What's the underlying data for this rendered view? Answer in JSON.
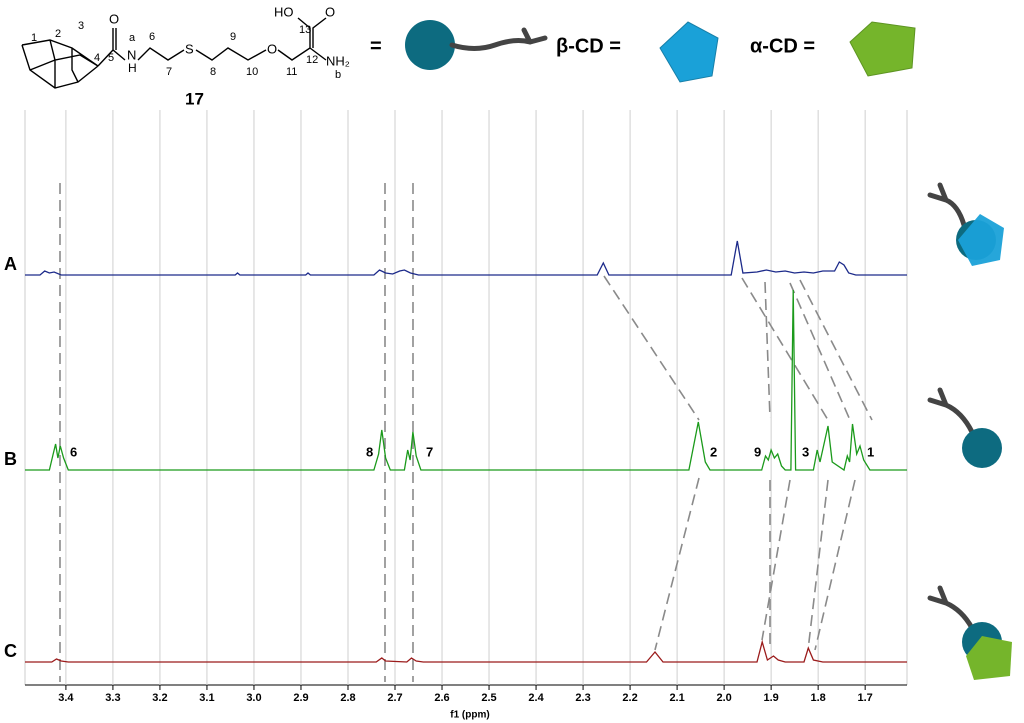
{
  "structure": {
    "atom_labels": [
      "1",
      "2",
      "3",
      "4",
      "5",
      "O",
      "a",
      "N",
      "H",
      "6",
      "7",
      "S",
      "8",
      "9",
      "10",
      "O",
      "11",
      "12",
      "13",
      "HO",
      "O",
      "NH₂",
      "b"
    ],
    "compound_number": "17"
  },
  "legend": {
    "equals": "=",
    "beta_cd": "β-CD =",
    "alpha_cd": "α-CD ="
  },
  "chart_data": {
    "type": "line",
    "xlabel": "f1 (ppm)",
    "xlim": [
      3.487,
      1.611
    ],
    "ylim": [
      0,
      200
    ],
    "grid": true,
    "xticks": [
      3.4,
      3.3,
      3.2,
      3.1,
      {
        "value": 3,
        "label": "3.0"
      },
      2.9,
      2.8,
      2.7,
      2.6,
      2.5,
      2.4,
      2.3,
      2.2,
      2.1,
      {
        "value": 2,
        "label": "2.0"
      },
      1.9,
      1.8,
      1.7
    ],
    "annotations": [
      "6",
      "8",
      "7",
      "2",
      "9",
      "3",
      "1"
    ],
    "series": [
      {
        "name": "A",
        "color": "#1c2a8a",
        "x": [
          3.487,
          3.455,
          3.445,
          3.435,
          3.425,
          3.41,
          3.04,
          3.035,
          3.03,
          2.89,
          2.885,
          2.88,
          2.745,
          2.733,
          2.72,
          2.705,
          2.69,
          2.68,
          2.667,
          2.65,
          2.27,
          2.257,
          2.245,
          1.985,
          1.972,
          1.96,
          1.93,
          1.91,
          1.89,
          1.87,
          1.85,
          1.83,
          1.81,
          1.79,
          1.765,
          1.755,
          1.745,
          1.735,
          1.72,
          1.611
        ],
        "values": [
          0,
          0,
          4,
          2,
          3,
          0,
          0,
          2,
          0,
          0,
          2,
          0,
          0,
          5,
          2,
          1,
          4,
          5,
          2,
          0,
          0,
          12,
          0,
          0,
          34,
          2,
          3,
          5,
          3,
          4,
          2,
          3,
          2,
          4,
          4,
          13,
          10,
          2,
          0,
          0
        ]
      },
      {
        "name": "B",
        "color": "#1b9a1b",
        "x": [
          3.487,
          3.435,
          3.428,
          3.422,
          3.417,
          3.412,
          3.405,
          3.395,
          2.745,
          2.735,
          2.728,
          2.72,
          2.71,
          2.68,
          2.673,
          2.668,
          2.662,
          2.655,
          2.645,
          2.075,
          2.055,
          2.04,
          2.03,
          1.92,
          1.912,
          1.906,
          1.9,
          1.893,
          1.886,
          1.878,
          1.87,
          1.858,
          1.853,
          1.848,
          1.81,
          1.802,
          1.796,
          1.779,
          1.77,
          1.745,
          1.738,
          1.733,
          1.727,
          1.718,
          1.711,
          1.703,
          1.69,
          1.611
        ],
        "values": [
          0,
          0,
          14,
          26,
          12,
          24,
          12,
          0,
          0,
          16,
          40,
          12,
          0,
          0,
          20,
          10,
          38,
          14,
          0,
          0,
          48,
          8,
          0,
          0,
          14,
          10,
          20,
          12,
          16,
          4,
          0,
          0,
          180,
          0,
          0,
          20,
          8,
          44,
          8,
          0,
          14,
          8,
          46,
          16,
          24,
          10,
          0,
          0
        ]
      },
      {
        "name": "C",
        "color": "#9b1b1b",
        "x": [
          3.487,
          3.43,
          3.42,
          3.41,
          3.395,
          2.74,
          2.728,
          2.72,
          2.675,
          2.665,
          2.655,
          2.64,
          2.165,
          2.147,
          2.13,
          1.93,
          1.919,
          1.908,
          1.895,
          1.885,
          1.87,
          1.83,
          1.821,
          1.81,
          1.79,
          1.611
        ],
        "values": [
          0,
          0,
          3,
          1,
          0,
          0,
          4,
          1,
          0,
          4,
          1,
          0,
          0,
          10,
          0,
          0,
          20,
          2,
          6,
          2,
          0,
          0,
          14,
          2,
          0,
          0
        ]
      }
    ]
  }
}
